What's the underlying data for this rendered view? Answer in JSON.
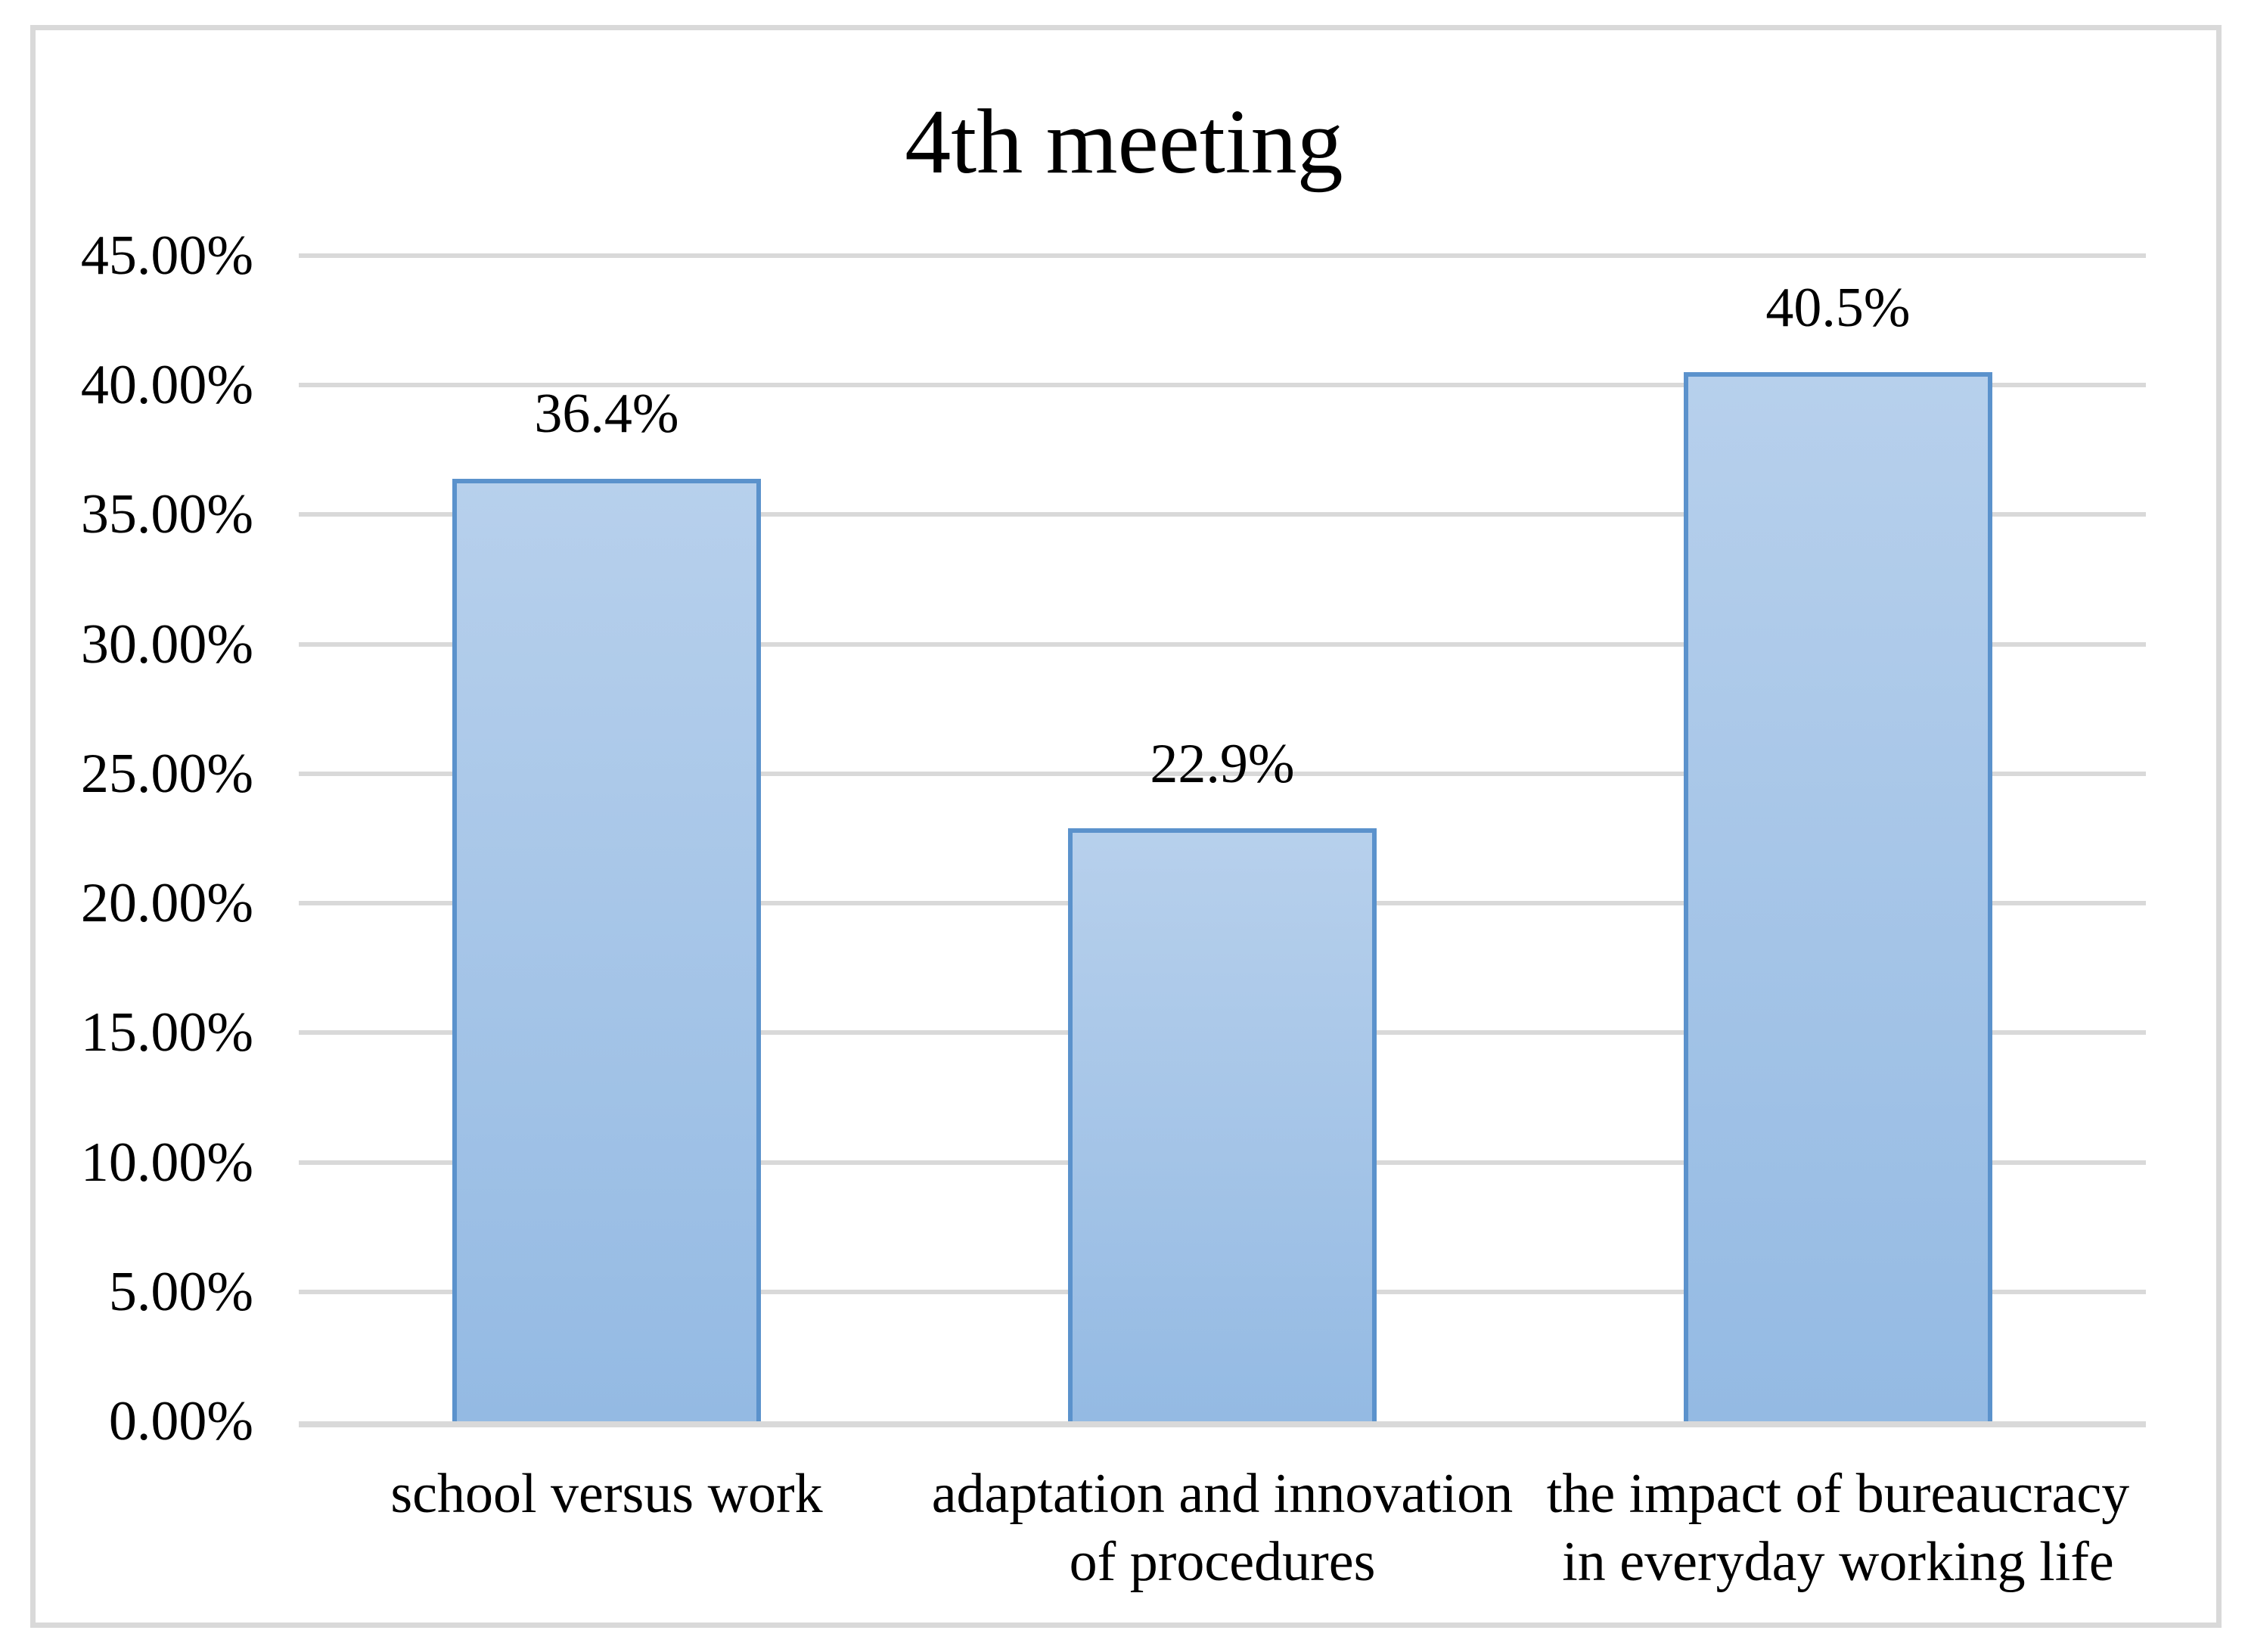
{
  "chart_data": {
    "type": "bar",
    "title": "4th meeting",
    "categories": [
      "school versus work",
      "adaptation and innovation of procedures",
      "the impact of bureaucracy in everyday working life"
    ],
    "values": [
      36.4,
      22.9,
      40.5
    ],
    "data_labels": [
      "36.4%",
      "22.9%",
      "40.5%"
    ],
    "xlabel": "",
    "ylabel": "",
    "ylim": [
      0,
      45
    ],
    "ytick_step": 5,
    "ytick_labels": [
      "0.00%",
      "5.00%",
      "10.00%",
      "15.00%",
      "20.00%",
      "25.00%",
      "30.00%",
      "35.00%",
      "40.00%",
      "45.00%"
    ],
    "grid": true,
    "legend": false,
    "colors": {
      "bar_fill_top": "#b7d0ec",
      "bar_fill_bottom": "#94bae3",
      "bar_border": "#5b92cc",
      "gridline": "#d9d9d9",
      "axis_line": "#d9d9d9",
      "frame_border": "#d9d9d9",
      "text": "#000000",
      "background": "#ffffff"
    }
  }
}
